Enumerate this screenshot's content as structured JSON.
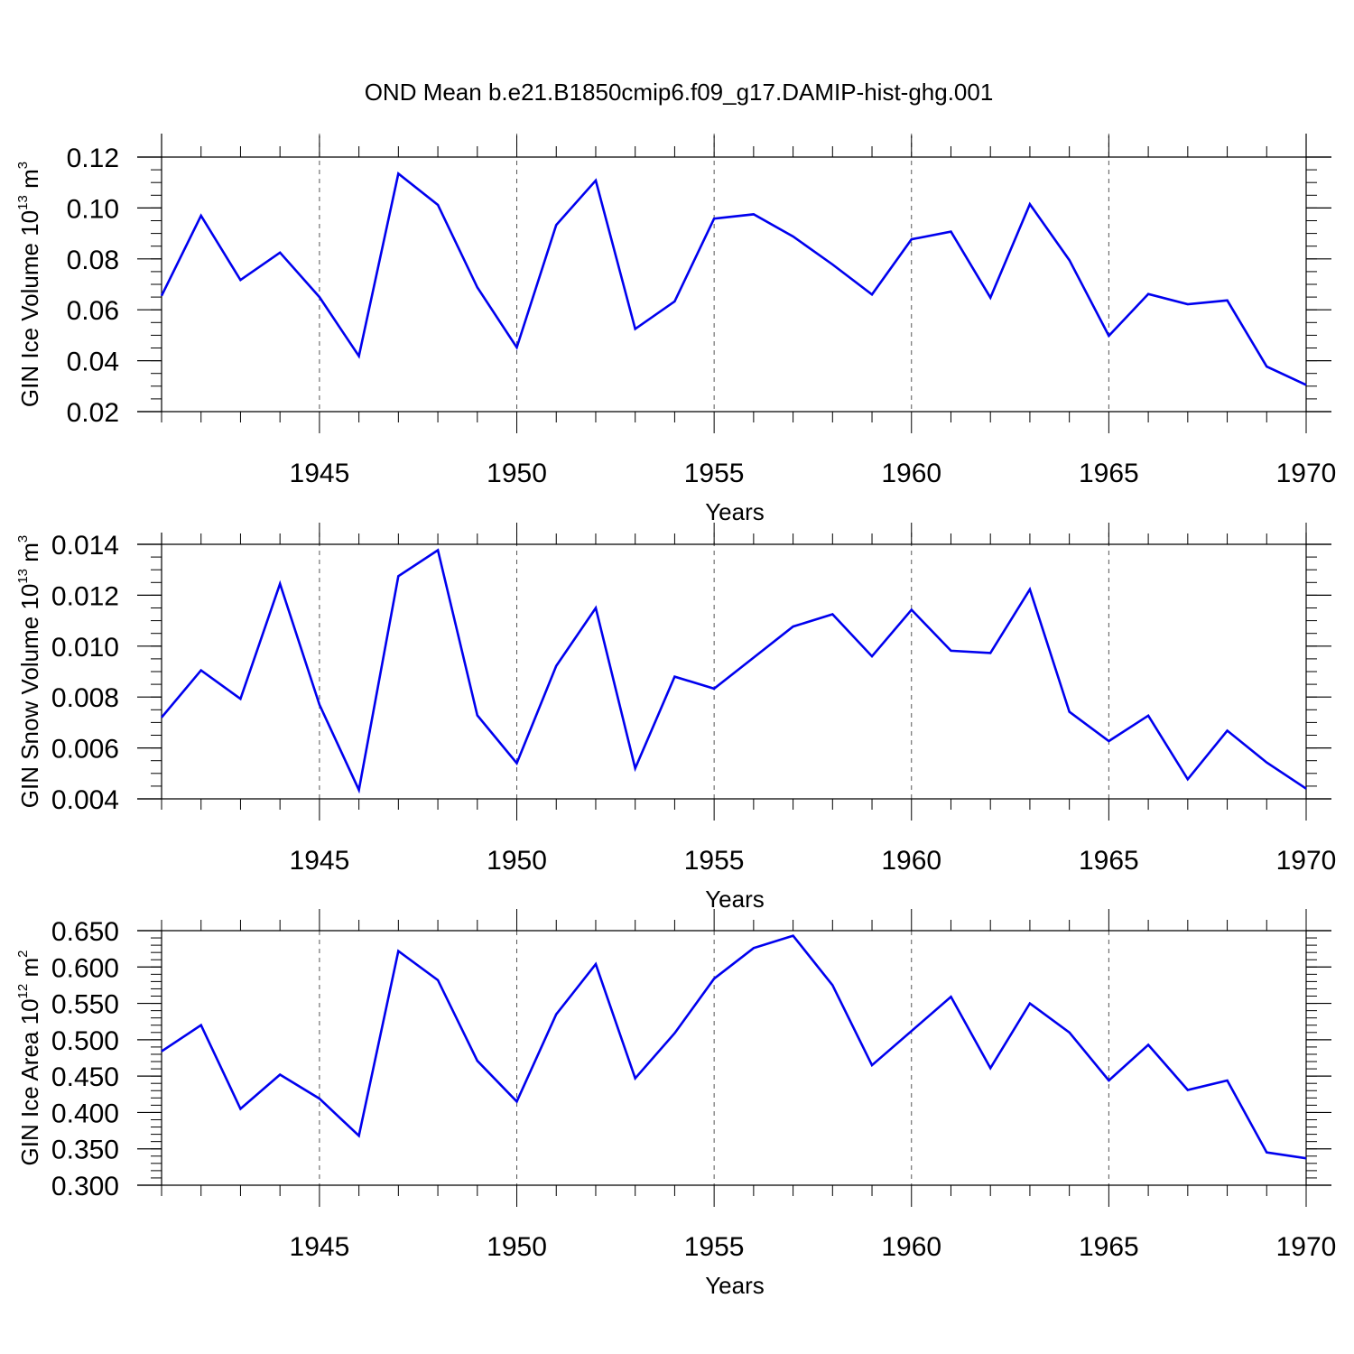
{
  "title": "OND Mean b.e21.B1850cmip6.f09_g17.DAMIP-hist-ghg.001",
  "colors": {
    "line": "#0000ee",
    "frame": "#000000",
    "grid": "#555555"
  },
  "chart_data": [
    {
      "type": "line",
      "ylabel": {
        "prefix": "GIN Ice Volume 10",
        "exp": "13",
        "mid": " m",
        "exp2": "3"
      },
      "xlabel": "Years",
      "xlim": [
        1941,
        1970
      ],
      "ylim": [
        0.02,
        0.12
      ],
      "xticks": [
        1945,
        1950,
        1955,
        1960,
        1965,
        1970
      ],
      "xtick_labels": [
        "1945",
        "1950",
        "1955",
        "1960",
        "1965",
        "1970"
      ],
      "yticks": [
        0.02,
        0.04,
        0.06,
        0.08,
        0.1,
        0.12
      ],
      "ytick_labels": [
        "0.02",
        "0.04",
        "0.06",
        "0.08",
        "0.10",
        "0.12"
      ],
      "yminor_step": 0.005,
      "grid": "x-dashed",
      "x": [
        1941,
        1942,
        1943,
        1944,
        1945,
        1946,
        1947,
        1948,
        1949,
        1950,
        1951,
        1952,
        1953,
        1954,
        1955,
        1956,
        1957,
        1958,
        1959,
        1960,
        1961,
        1962,
        1963,
        1964,
        1965,
        1966,
        1967,
        1968,
        1969,
        1970
      ],
      "values": [
        0.0655,
        0.097,
        0.0717,
        0.0825,
        0.065,
        0.0418,
        0.1135,
        0.1012,
        0.0688,
        0.0452,
        0.0933,
        0.1108,
        0.0525,
        0.0633,
        0.0958,
        0.0975,
        0.0888,
        0.0778,
        0.066,
        0.0877,
        0.0907,
        0.0648,
        0.1015,
        0.0795,
        0.0498,
        0.0662,
        0.0622,
        0.0637,
        0.0377,
        0.0305
      ]
    },
    {
      "type": "line",
      "ylabel": {
        "prefix": "GIN Snow Volume 10",
        "exp": "13",
        "mid": " m",
        "exp2": "3"
      },
      "xlabel": "Years",
      "xlim": [
        1941,
        1970
      ],
      "ylim": [
        0.004,
        0.014
      ],
      "xticks": [
        1945,
        1950,
        1955,
        1960,
        1965,
        1970
      ],
      "xtick_labels": [
        "1945",
        "1950",
        "1955",
        "1960",
        "1965",
        "1970"
      ],
      "yticks": [
        0.004,
        0.006,
        0.008,
        0.01,
        0.012,
        0.014
      ],
      "ytick_labels": [
        "0.004",
        "0.006",
        "0.008",
        "0.010",
        "0.012",
        "0.014"
      ],
      "yminor_step": 0.0005,
      "grid": "x-dashed",
      "x": [
        1941,
        1942,
        1943,
        1944,
        1945,
        1946,
        1947,
        1948,
        1949,
        1950,
        1951,
        1952,
        1953,
        1954,
        1955,
        1956,
        1957,
        1958,
        1959,
        1960,
        1961,
        1962,
        1963,
        1964,
        1965,
        1966,
        1967,
        1968,
        1969,
        1970
      ],
      "values": [
        0.0072,
        0.00905,
        0.00793,
        0.01245,
        0.0077,
        0.00435,
        0.01275,
        0.01377,
        0.00728,
        0.0054,
        0.00922,
        0.0115,
        0.0052,
        0.0088,
        0.00833,
        0.00955,
        0.01077,
        0.01125,
        0.0096,
        0.01143,
        0.00982,
        0.00973,
        0.01223,
        0.00742,
        0.00627,
        0.00727,
        0.00477,
        0.00668,
        0.00543,
        0.0044
      ]
    },
    {
      "type": "line",
      "ylabel": {
        "prefix": "GIN Ice Area 10",
        "exp": "12",
        "mid": " m",
        "exp2": "2"
      },
      "xlabel": "Years",
      "xlim": [
        1941,
        1970
      ],
      "ylim": [
        0.3,
        0.65
      ],
      "xticks": [
        1945,
        1950,
        1955,
        1960,
        1965,
        1970
      ],
      "xtick_labels": [
        "1945",
        "1950",
        "1955",
        "1960",
        "1965",
        "1970"
      ],
      "yticks": [
        0.3,
        0.35,
        0.4,
        0.45,
        0.5,
        0.55,
        0.6,
        0.65
      ],
      "ytick_labels": [
        "0.300",
        "0.350",
        "0.400",
        "0.450",
        "0.500",
        "0.550",
        "0.600",
        "0.650"
      ],
      "yminor_step": 0.01,
      "grid": "x-dashed",
      "x": [
        1941,
        1942,
        1943,
        1944,
        1945,
        1946,
        1947,
        1948,
        1949,
        1950,
        1951,
        1952,
        1953,
        1954,
        1955,
        1956,
        1957,
        1958,
        1959,
        1960,
        1961,
        1962,
        1963,
        1964,
        1965,
        1966,
        1967,
        1968,
        1969,
        1970
      ],
      "values": [
        0.484,
        0.52,
        0.405,
        0.452,
        0.419,
        0.368,
        0.622,
        0.582,
        0.471,
        0.415,
        0.535,
        0.604,
        0.447,
        0.509,
        0.584,
        0.626,
        0.643,
        0.575,
        0.465,
        0.512,
        0.559,
        0.461,
        0.55,
        0.51,
        0.444,
        0.493,
        0.431,
        0.444,
        0.345,
        0.337
      ]
    }
  ]
}
